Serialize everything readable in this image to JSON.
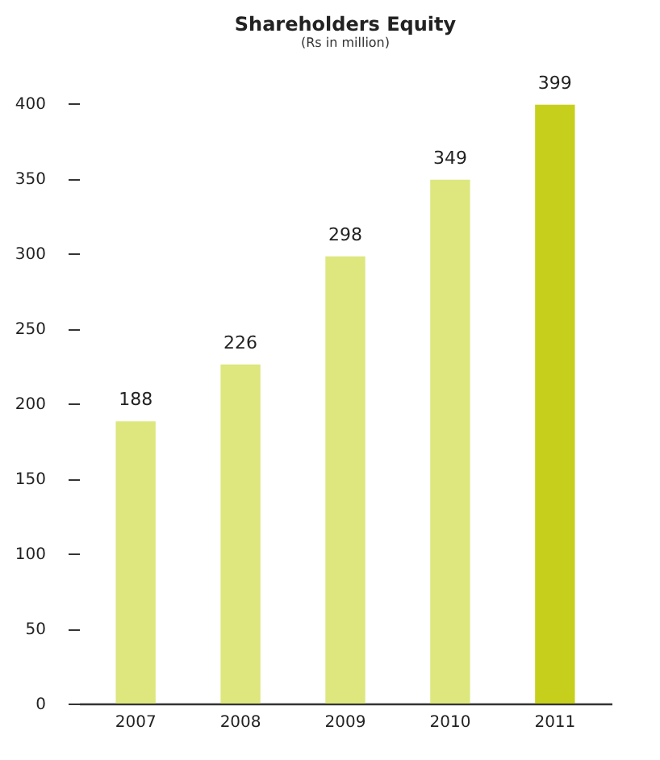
{
  "chart_data": {
    "type": "bar",
    "title": "Shareholders Equity",
    "subtitle": "(Rs in million)",
    "categories": [
      "2007",
      "2008",
      "2009",
      "2010",
      "2011"
    ],
    "values": [
      188,
      226,
      298,
      349,
      399
    ],
    "colors": [
      "#dde77e",
      "#dde77e",
      "#dde77e",
      "#dde77e",
      "#c6d01c"
    ],
    "ylim": [
      0,
      400
    ],
    "yticks": [
      0,
      50,
      100,
      150,
      200,
      250,
      300,
      350,
      400
    ],
    "data_labels": true
  }
}
